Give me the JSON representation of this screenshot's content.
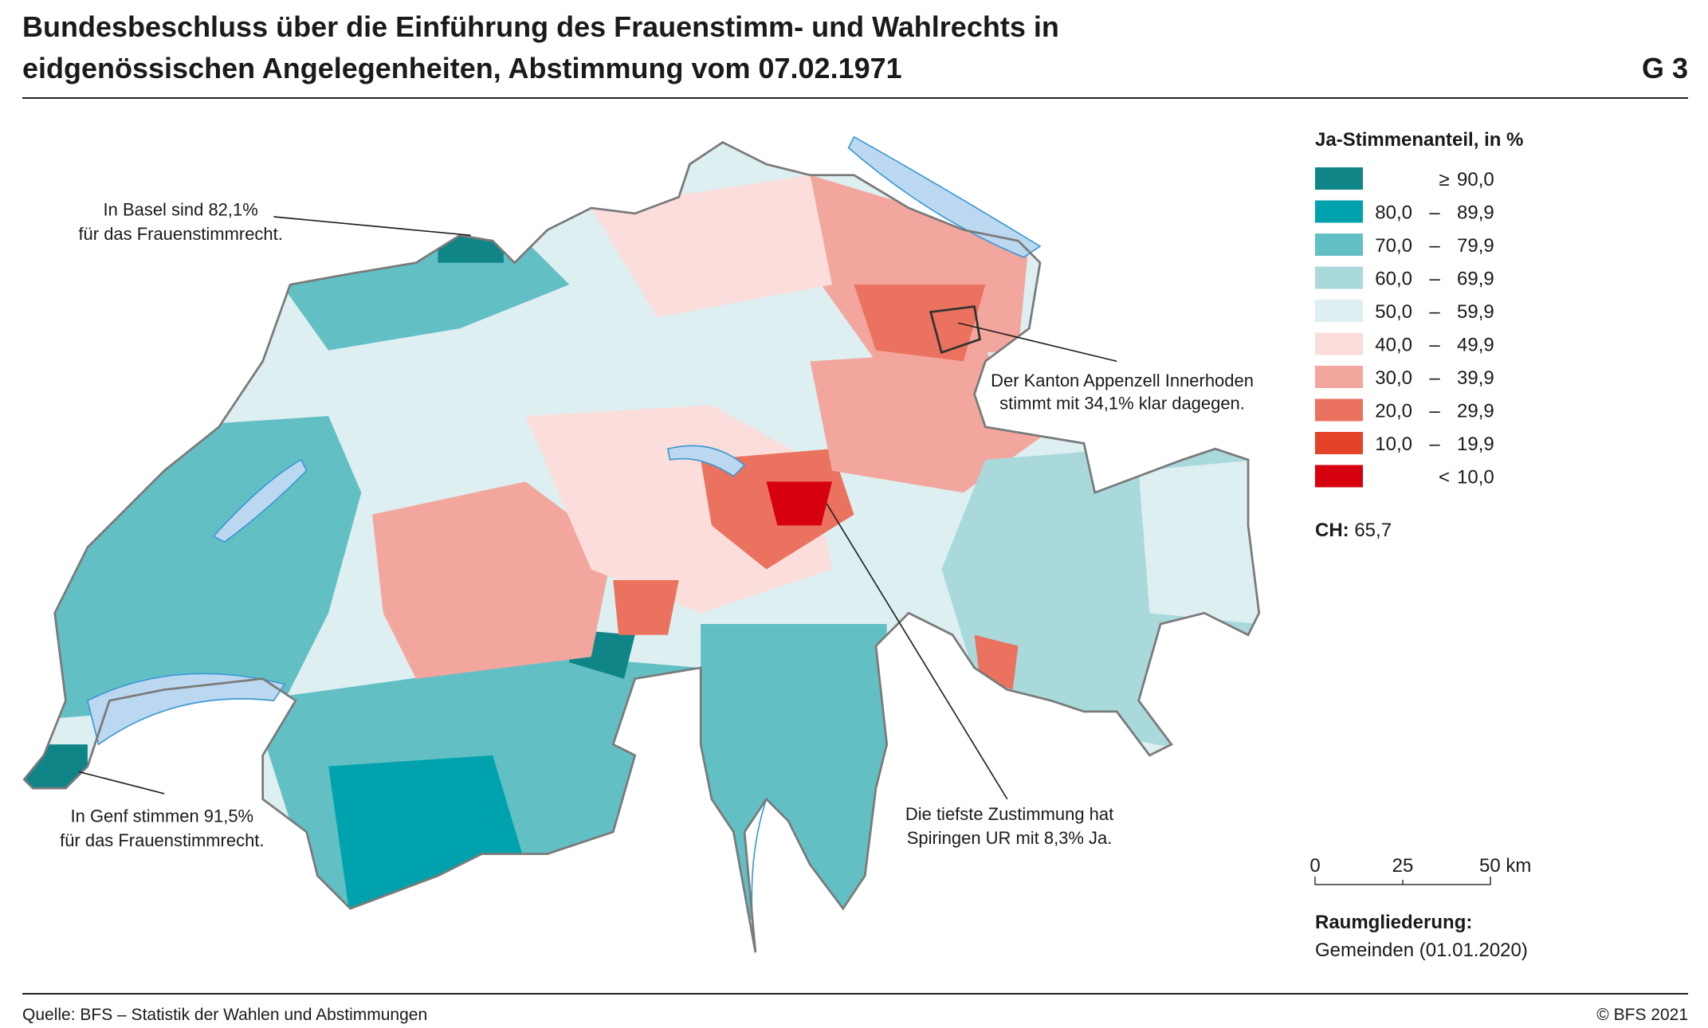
{
  "header": {
    "title_lines": [
      "Bundesbeschluss über die Einführung des Frauenstimm- und Wahlrechts in",
      "eidgenössischen Angelegenheiten, Abstimmung vom 07.02.1971"
    ],
    "figure": "G 3"
  },
  "legend": {
    "title": "Ja-Stimmenanteil, in %",
    "items": [
      {
        "color": "#0f8588",
        "from": "",
        "dash": "≥",
        "to": "90,0"
      },
      {
        "color": "#00a3ad",
        "from": "80,0",
        "dash": "–",
        "to": "89,9"
      },
      {
        "color": "#62bfc4",
        "from": "70,0",
        "dash": "–",
        "to": "79,9"
      },
      {
        "color": "#a9d9db",
        "from": "60,0",
        "dash": "–",
        "to": "69,9"
      },
      {
        "color": "#ddeff1",
        "from": "50,0",
        "dash": "–",
        "to": "59,9"
      },
      {
        "color": "#fbdedc",
        "from": "40,0",
        "dash": "–",
        "to": "49,9"
      },
      {
        "color": "#f3a69d",
        "from": "30,0",
        "dash": "–",
        "to": "39,9"
      },
      {
        "color": "#eb725f",
        "from": "20,0",
        "dash": "–",
        "to": "29,9"
      },
      {
        "color": "#e4432a",
        "from": "10,0",
        "dash": "–",
        "to": "19,9"
      },
      {
        "color": "#d7000f",
        "from": "",
        "dash": "<",
        "to": "10,0"
      }
    ],
    "total_label": "CH:",
    "total_value": "65,7"
  },
  "annotations": [
    {
      "lines": [
        "In Basel sind 82,1%",
        "für das Frauenstimmrecht."
      ]
    },
    {
      "lines": [
        "Der Kanton Appenzell Innerhoden",
        "stimmt mit 34,1% klar dagegen."
      ]
    },
    {
      "lines": [
        "Die tiefste Zustimmung hat",
        "Spiringen UR mit 8,3% Ja."
      ]
    },
    {
      "lines": [
        "In Genf stimmen 91,5%",
        "für das Frauenstimmrecht."
      ]
    }
  ],
  "scale_bar": {
    "labels": [
      "0",
      "25",
      "50 km"
    ]
  },
  "spatial": {
    "title": "Raumgliederung:",
    "value": "Gemeinden (01.01.2020)"
  },
  "footer": {
    "source": "Quelle: BFS – Statistik der Wahlen und Abstimmungen",
    "copyright": "© BFS 2021"
  }
}
